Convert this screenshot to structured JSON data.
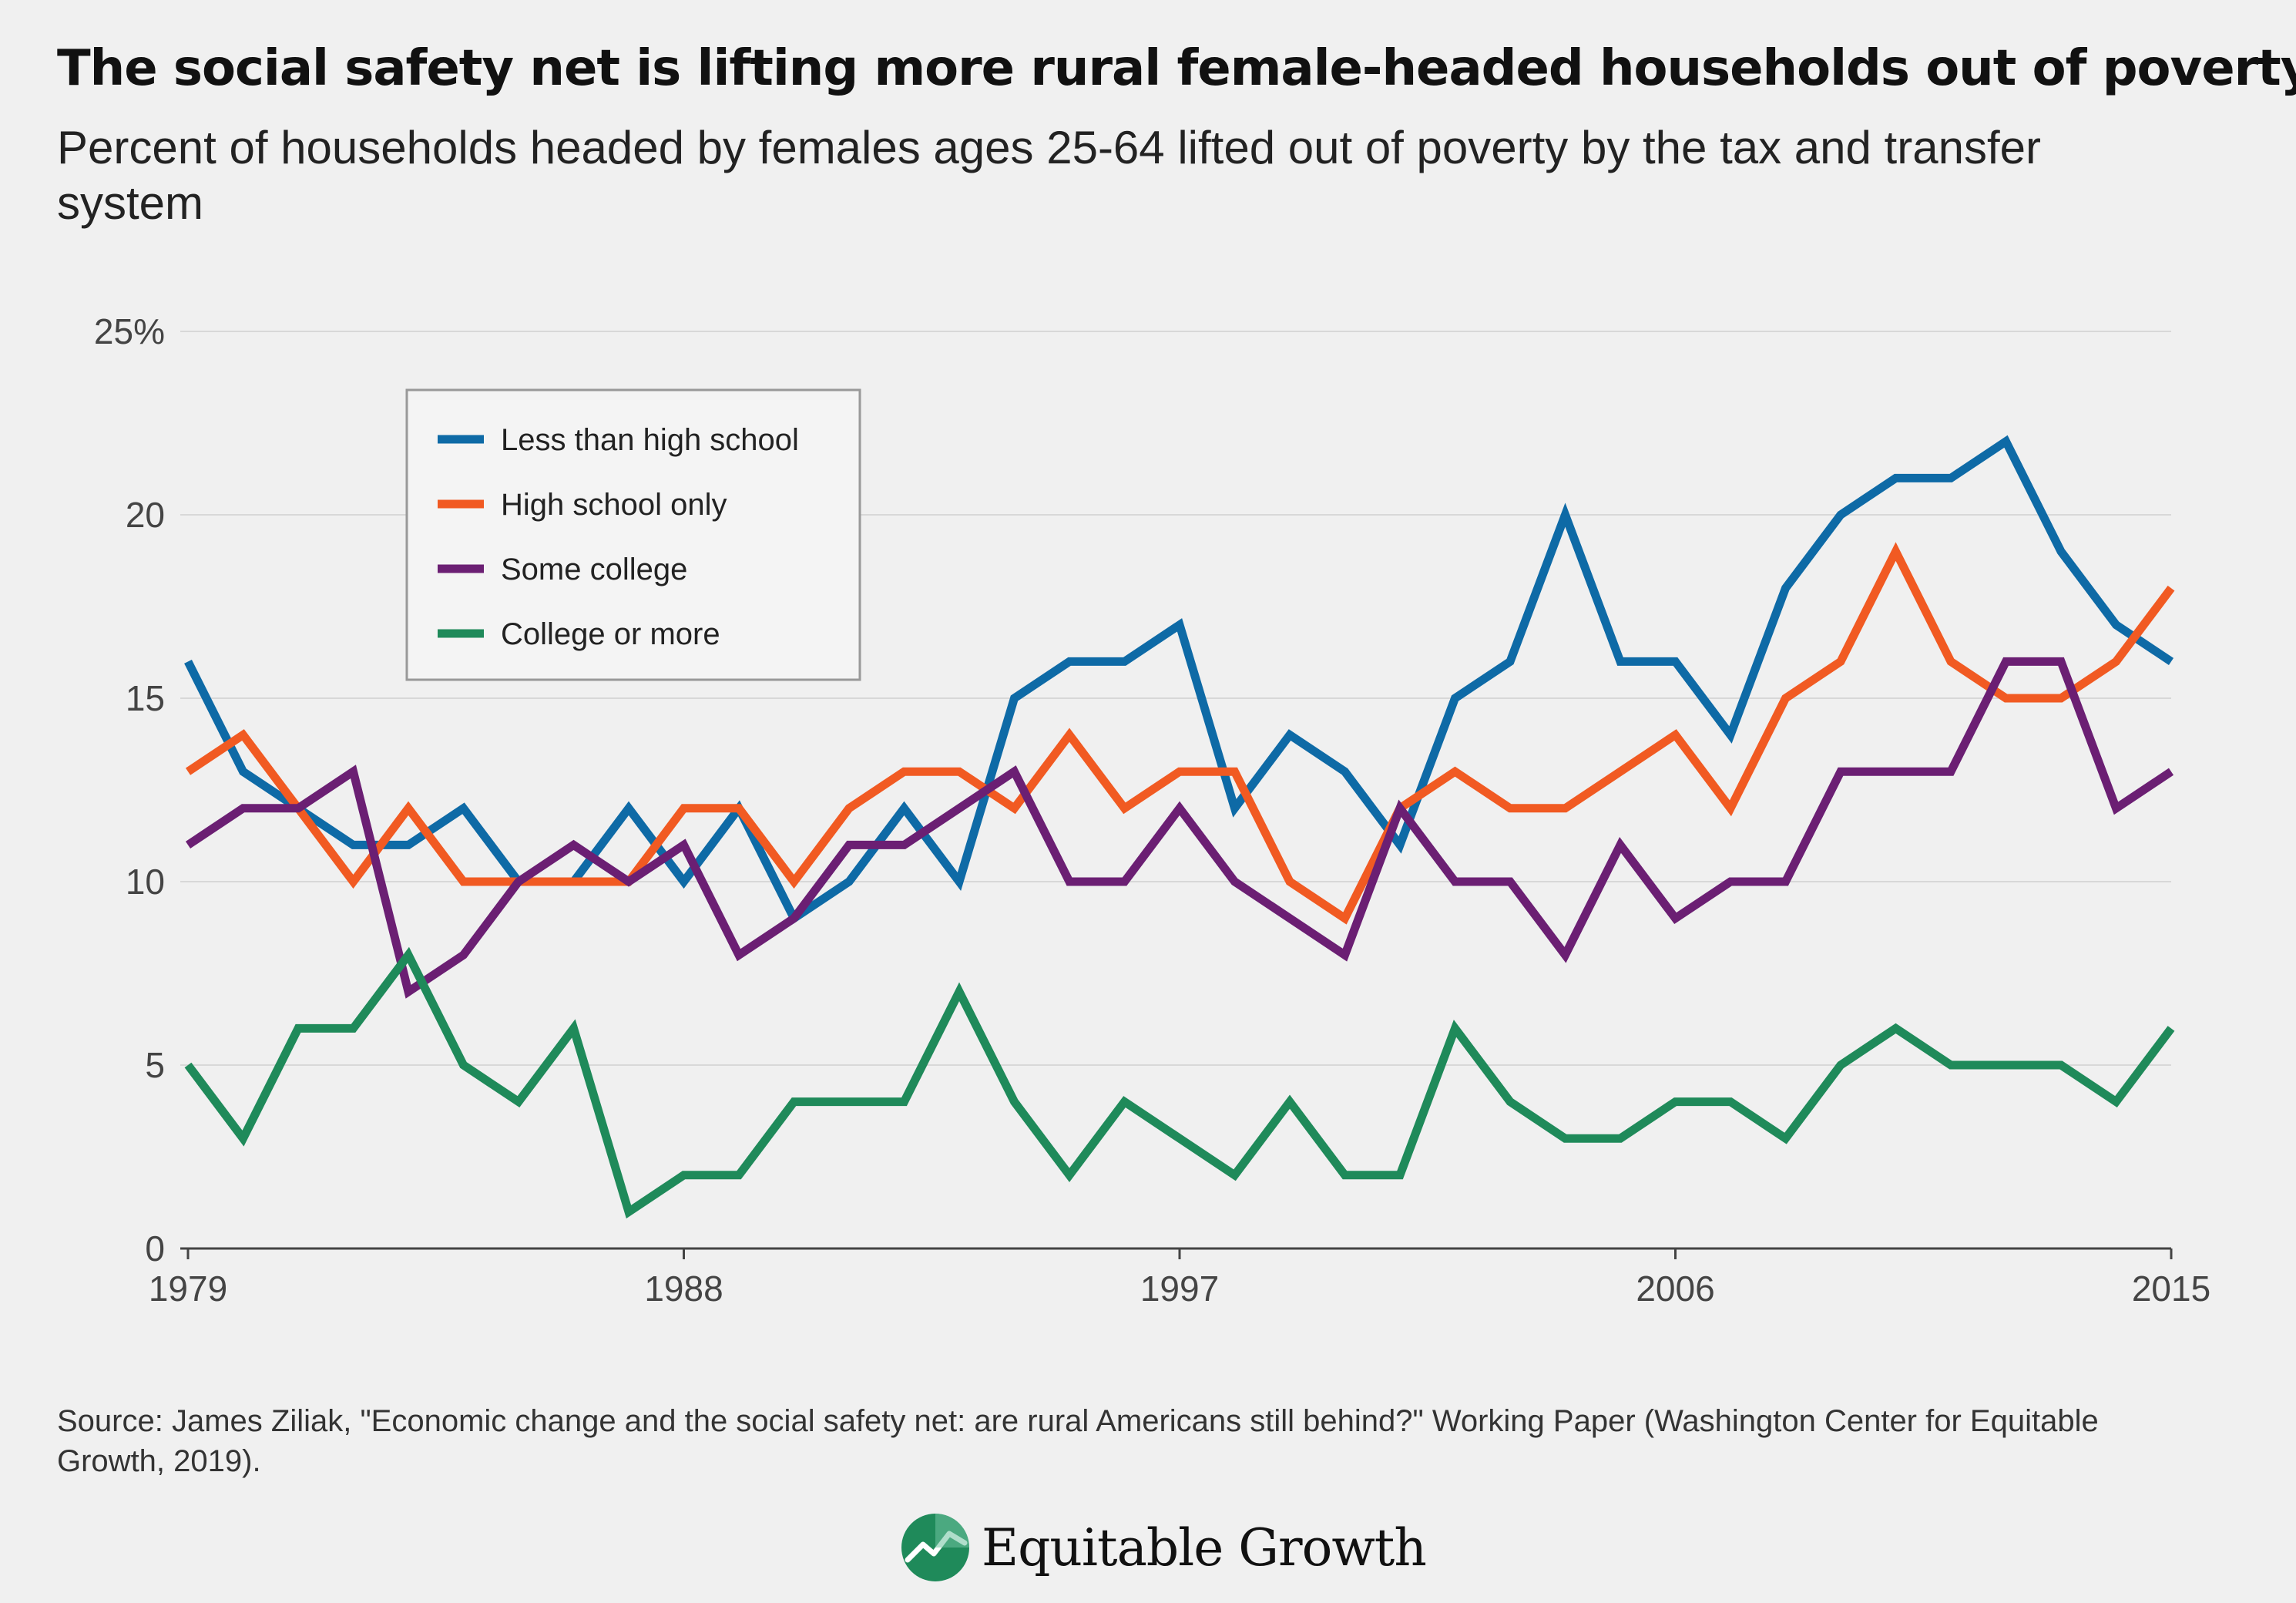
{
  "title": "The social safety net is lifting more rural female-headed households out of poverty",
  "subtitle": "Percent of households headed by females ages 25-64 lifted out of poverty by the tax and transfer system",
  "source": "Source: James Ziliak, \"Economic change and the social safety net: are rural Americans still behind?\" Working Paper (Washington Center for Equitable Growth, 2019).",
  "logo": {
    "text": "Equitable Growth",
    "icon": "equitable-growth-logo-icon"
  },
  "colors": {
    "less_than_high_school": "#0e6aa6",
    "high_school_only": "#f15a22",
    "some_college": "#6b1f73",
    "college_or_more": "#1f8a5a",
    "grid": "#d8d8d8",
    "axis": "#444444"
  },
  "chart_data": {
    "type": "line",
    "title": "The social safety net is lifting more rural female-headed households out of poverty",
    "subtitle": "Percent of households headed by females ages 25-64 lifted out of poverty by the tax and transfer system",
    "xlabel": "",
    "ylabel": "",
    "x": [
      1979,
      1980,
      1981,
      1982,
      1983,
      1984,
      1985,
      1986,
      1987,
      1988,
      1989,
      1990,
      1991,
      1992,
      1993,
      1994,
      1995,
      1996,
      1997,
      1998,
      1999,
      2000,
      2001,
      2002,
      2003,
      2004,
      2005,
      2006,
      2007,
      2008,
      2009,
      2010,
      2011,
      2012,
      2013,
      2014,
      2015
    ],
    "xticks": [
      "1979",
      "1988",
      "1997",
      "2006",
      "2015"
    ],
    "xtick_values": [
      1979,
      1988,
      1997,
      2006,
      2015
    ],
    "yticks": [
      "0",
      "5",
      "10",
      "15",
      "20",
      "25%"
    ],
    "ytick_values": [
      0,
      5,
      10,
      15,
      20,
      25
    ],
    "xlim": [
      1979,
      2015
    ],
    "ylim": [
      0,
      25
    ],
    "grid": "horizontal",
    "legend_position": "top-left",
    "series": [
      {
        "name": "Less than high school",
        "color": "#0e6aa6",
        "values": [
          16,
          13,
          12,
          11,
          11,
          12,
          10,
          10,
          12,
          10,
          12,
          9,
          10,
          12,
          10,
          15,
          16,
          16,
          17,
          12,
          14,
          13,
          11,
          15,
          16,
          20,
          16,
          16,
          14,
          18,
          20,
          21,
          21,
          22,
          19,
          17,
          16
        ]
      },
      {
        "name": "High school only",
        "color": "#f15a22",
        "values": [
          13,
          14,
          12,
          10,
          12,
          10,
          10,
          10,
          10,
          12,
          12,
          10,
          12,
          13,
          13,
          12,
          14,
          12,
          13,
          13,
          10,
          9,
          12,
          13,
          12,
          12,
          13,
          14,
          12,
          15,
          16,
          19,
          16,
          15,
          15,
          16,
          18
        ]
      },
      {
        "name": "Some college",
        "color": "#6b1f73",
        "values": [
          11,
          12,
          12,
          13,
          7,
          8,
          10,
          11,
          10,
          11,
          8,
          9,
          11,
          11,
          12,
          13,
          10,
          10,
          12,
          10,
          9,
          8,
          12,
          10,
          10,
          8,
          11,
          9,
          10,
          10,
          13,
          13,
          13,
          16,
          16,
          12,
          13
        ]
      },
      {
        "name": "College or more",
        "color": "#1f8a5a",
        "values": [
          5,
          3,
          6,
          6,
          8,
          5,
          4,
          6,
          1,
          2,
          2,
          4,
          4,
          4,
          7,
          4,
          2,
          4,
          3,
          2,
          4,
          2,
          2,
          6,
          4,
          3,
          3,
          4,
          4,
          3,
          5,
          6,
          5,
          5,
          5,
          4,
          6
        ]
      }
    ]
  }
}
